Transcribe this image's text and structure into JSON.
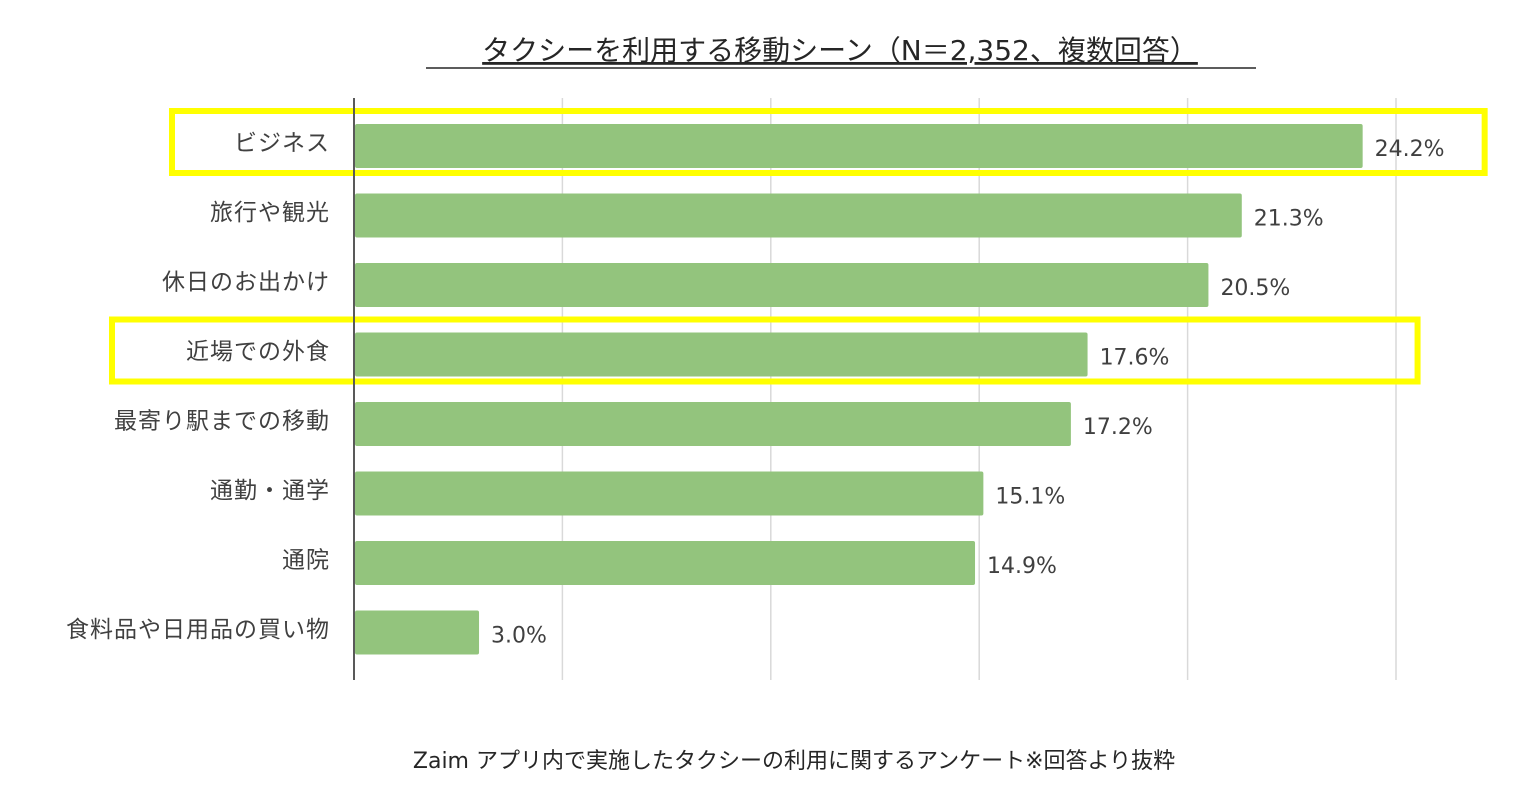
{
  "chart_data": {
    "type": "bar",
    "orientation": "horizontal",
    "title": "タクシーを利用する移動シーン（N＝2,352、複数回答）",
    "categories": [
      "ビジネス",
      "旅行や観光",
      "休日のお出かけ",
      "近場での外食",
      "最寄り駅までの移動",
      "通勤・通学",
      "通院",
      "食料品や日用品の買い物"
    ],
    "values": [
      24.2,
      21.3,
      20.5,
      17.6,
      17.2,
      15.1,
      14.9,
      3.0
    ],
    "value_labels": [
      "24.2%",
      "21.3%",
      "20.5%",
      "17.6%",
      "17.2%",
      "15.1%",
      "14.9%",
      "3.0%"
    ],
    "xlim": [
      0,
      25
    ],
    "gridlines": [
      0,
      5,
      10,
      15,
      20,
      25
    ],
    "grid": true,
    "highlighted_categories": [
      "ビジネス",
      "近場での外食"
    ],
    "footnote": "Zaim アプリ内で実施したタクシーの利用に関するアンケート※回答より抜粋"
  },
  "colors": {
    "bar": "#93c47d",
    "highlight": "#ffff00",
    "grid": "#d9d9d9",
    "axis": "#595959",
    "text": "#404040"
  }
}
